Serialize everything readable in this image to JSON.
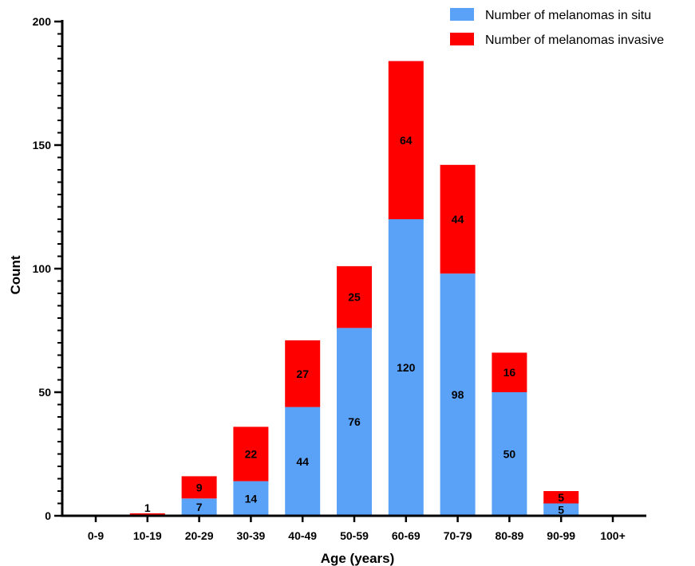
{
  "chart_data": {
    "type": "bar",
    "stacked": true,
    "categories": [
      "0-9",
      "10-19",
      "20-29",
      "30-39",
      "40-49",
      "50-59",
      "60-69",
      "70-79",
      "80-89",
      "90-99",
      "100+"
    ],
    "series": [
      {
        "name": "Number of melanomas in situ",
        "color": "#5aa2f8",
        "values": [
          0,
          0,
          7,
          14,
          44,
          76,
          120,
          98,
          50,
          5,
          0
        ],
        "labels": [
          "",
          "",
          "7",
          "14",
          "44",
          "76",
          "120",
          "98",
          "50",
          "5",
          ""
        ]
      },
      {
        "name": "Number of melanomas invasive",
        "color": "#ff0000",
        "values": [
          0,
          1,
          9,
          22,
          27,
          25,
          64,
          44,
          16,
          5,
          0
        ],
        "labels": [
          "",
          "1",
          "9",
          "22",
          "27",
          "25",
          "64",
          "44",
          "16",
          "5",
          ""
        ]
      }
    ],
    "xlabel": "Age (years)",
    "ylabel": "Count",
    "ylim": [
      0,
      200
    ],
    "yticks": [
      "0",
      "50",
      "100",
      "150",
      "200"
    ],
    "grid": false,
    "legend_position": "top-right"
  }
}
